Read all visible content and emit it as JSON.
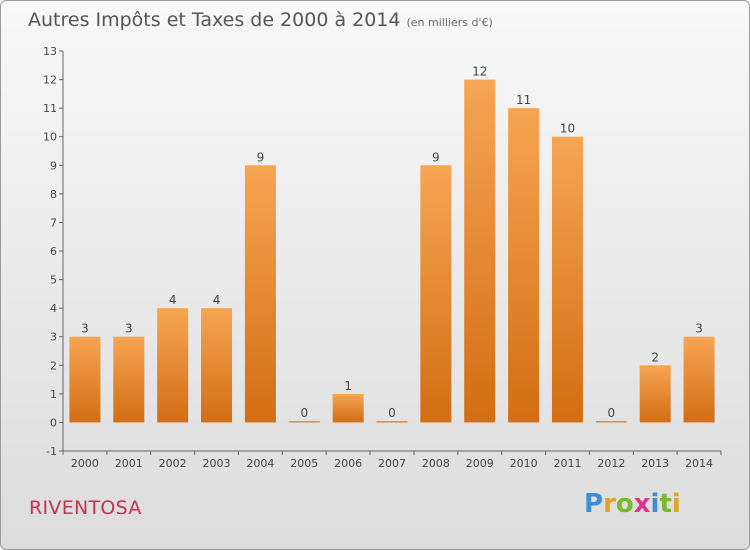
{
  "title": "Autres Impôts et Taxes de 2000 à 2014",
  "unit": "(en milliers d'€)",
  "commune": "RIVENTOSA",
  "logo": {
    "text": "Proxiti",
    "letters": [
      "P",
      "r",
      "o",
      "x",
      "i",
      "t",
      "i"
    ],
    "colors": [
      "#3a8fd0",
      "#e4a220",
      "#7cb929",
      "#e0348a",
      "#3a8fd0",
      "#7cb929",
      "#e4a220"
    ]
  },
  "colors": {
    "bar_top": "#f6a553",
    "bar_bottom": "#d26d14",
    "text": "#555555",
    "commune": "#c2334e"
  },
  "chart_data": {
    "type": "bar",
    "categories": [
      "2000",
      "2001",
      "2002",
      "2003",
      "2004",
      "2005",
      "2006",
      "2007",
      "2008",
      "2009",
      "2010",
      "2011",
      "2012",
      "2013",
      "2014"
    ],
    "values": [
      3,
      3,
      4,
      4,
      9,
      0,
      1,
      0,
      9,
      12,
      11,
      10,
      0,
      2,
      3
    ],
    "data_labels": [
      "3",
      "3",
      "4",
      "4",
      "9",
      "0",
      "1",
      "0",
      "9",
      "12",
      "11",
      "10",
      "0",
      "2",
      "3"
    ],
    "yticks": [
      "-1",
      "0",
      "1",
      "2",
      "3",
      "4",
      "5",
      "6",
      "7",
      "8",
      "9",
      "10",
      "11",
      "12",
      "13"
    ],
    "ylim": [
      -1,
      13
    ],
    "grid": false
  }
}
